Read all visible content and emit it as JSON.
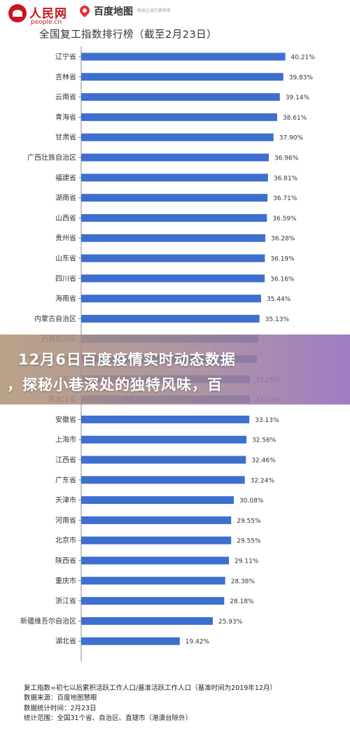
{
  "header": {
    "people_name": "人民网",
    "people_domain": "people.cn",
    "baidu_name": "百度地图",
    "baidu_slogan": "科技让出行更简单"
  },
  "chart_data": {
    "type": "bar",
    "orientation": "horizontal",
    "title": "全国复工指数排行榜（截至2月23日）",
    "bar_color": "#3d6fcf",
    "xlim": [
      0,
      45
    ],
    "value_suffix": "%",
    "categories": [
      "辽宁省",
      "吉林省",
      "云南省",
      "青海省",
      "甘肃省",
      "广西壮族自治区",
      "福建省",
      "湖南省",
      "山西省",
      "贵州省",
      "山东省",
      "四川省",
      "海南省",
      "内蒙古自治区",
      "西藏自治区",
      "宁夏回族自治区",
      "江苏省",
      "黑龙江省",
      "安徽省",
      "上海市",
      "江西省",
      "广东省",
      "天津市",
      "河南省",
      "北京市",
      "陕西省",
      "重庆市",
      "浙江省",
      "新疆维吾尔自治区",
      "湖北省"
    ],
    "values": [
      40.21,
      39.83,
      39.14,
      38.61,
      37.9,
      36.96,
      36.81,
      36.71,
      36.59,
      36.28,
      36.19,
      36.16,
      35.44,
      35.13,
      34.9,
      34.6,
      33.25,
      33.23,
      33.13,
      32.56,
      32.46,
      32.24,
      30.08,
      29.55,
      29.55,
      29.11,
      28.38,
      28.18,
      25.93,
      19.42
    ],
    "value_labels": [
      "40.21%",
      "39.83%",
      "39.14%",
      "38.61%",
      "37.90%",
      "36.96%",
      "36.81%",
      "36.71%",
      "36.59%",
      "36.28%",
      "36.19%",
      "36.16%",
      "35.44%",
      "35.13%",
      "",
      "",
      "33.25%",
      "33.23%",
      "33.13%",
      "32.56%",
      "32.46%",
      "32.24%",
      "30.08%",
      "29.55%",
      "29.55%",
      "29.11%",
      "28.38%",
      "28.18%",
      "25.93%",
      "19.42%"
    ]
  },
  "notes": [
    "复工指数=初七以后累积活跃工作人口/基准活跃工作人口（基准时间为2019年12月）",
    "数据来源：百度地图慧眼",
    "数据统计时间：2月23日",
    "统计范围：全国31个省、自治区、直辖市（港澳台除外）"
  ],
  "banner": {
    "line1": "12月6日百度疫情实时动态数据",
    "line2": "，探秘小巷深处的独特风味，百"
  }
}
